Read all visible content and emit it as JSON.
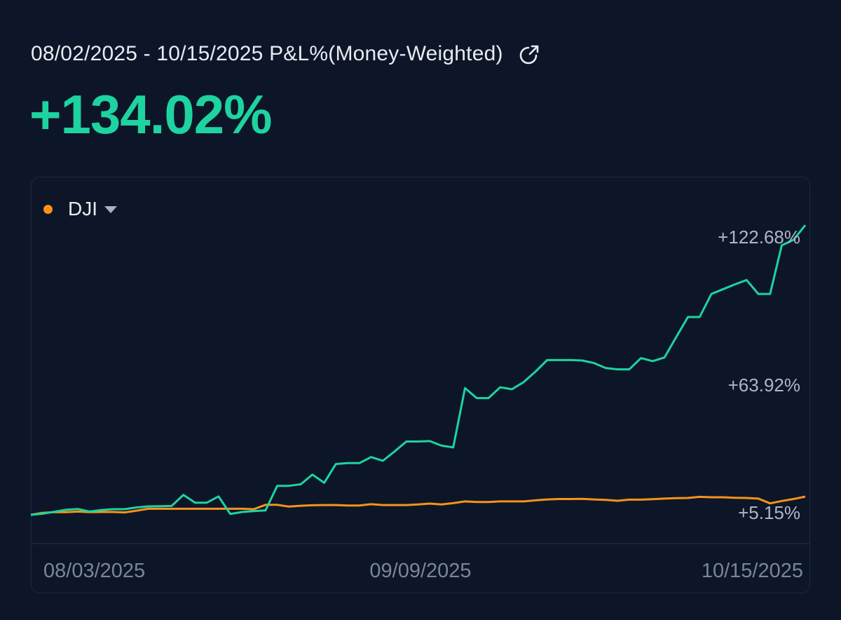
{
  "header": {
    "title": "08/02/2025 - 10/15/2025 P&L%(Money-Weighted)",
    "share_icon": "share-arrow-icon",
    "value": "+134.02%",
    "value_color": "#1ed3a0"
  },
  "legend": {
    "label": "DJI",
    "color": "#f7931a",
    "dropdown_icon": "caret-down-icon"
  },
  "chart_data": {
    "type": "line",
    "x_tick_labels": [
      "08/03/2025",
      "09/09/2025",
      "10/15/2025"
    ],
    "y_tick_labels": [
      "+122.68%",
      "+63.92%",
      "+5.15%"
    ],
    "y_ticks": [
      122.68,
      63.92,
      5.15
    ],
    "grid": false,
    "legend_position": "top-left",
    "series": [
      {
        "color": "#1ed3a0",
        "values": [
          0,
          0.5,
          1.4,
          2.3,
          2.7,
          1.5,
          2.2,
          2.6,
          2.6,
          3.4,
          3.9,
          4.0,
          4.1,
          9.2,
          5.6,
          5.6,
          8.5,
          0.4,
          1.3,
          1.7,
          2.0,
          13.4,
          13.4,
          14.1,
          18.6,
          14.8,
          23.5,
          23.9,
          23.9,
          26.7,
          25.0,
          29.3,
          33.9,
          33.9,
          34.1,
          32.0,
          31.2,
          58.6,
          54.0,
          54.0,
          59.0,
          58.1,
          61.4,
          66.2,
          71.6,
          71.6,
          71.6,
          71.4,
          70.2,
          67.9,
          67.3,
          67.3,
          72.5,
          71.1,
          72.8,
          82.2,
          91.5,
          91.5,
          102.2,
          104.4,
          106.6,
          108.6,
          102.2,
          102.2,
          124.7,
          127.2,
          134.02
        ]
      },
      {
        "name": "DJI",
        "color": "#f7931a",
        "values": [
          0,
          0.9,
          1.2,
          1.2,
          1.5,
          1.2,
          1.3,
          1.3,
          1.1,
          1.9,
          2.8,
          2.8,
          2.8,
          2.8,
          2.8,
          2.8,
          2.8,
          2.8,
          2.8,
          2.6,
          4.6,
          4.6,
          3.8,
          4.2,
          4.4,
          4.5,
          4.5,
          4.3,
          4.3,
          4.9,
          4.5,
          4.5,
          4.5,
          4.8,
          5.2,
          4.8,
          5.4,
          6.2,
          5.9,
          5.9,
          6.2,
          6.2,
          6.2,
          6.7,
          7.1,
          7.3,
          7.3,
          7.4,
          7.1,
          6.9,
          6.5,
          7.0,
          7.0,
          7.2,
          7.5,
          7.7,
          7.8,
          8.3,
          8.1,
          8.1,
          7.9,
          7.8,
          7.5,
          5.3,
          6.4,
          7.3,
          8.4
        ]
      }
    ]
  }
}
